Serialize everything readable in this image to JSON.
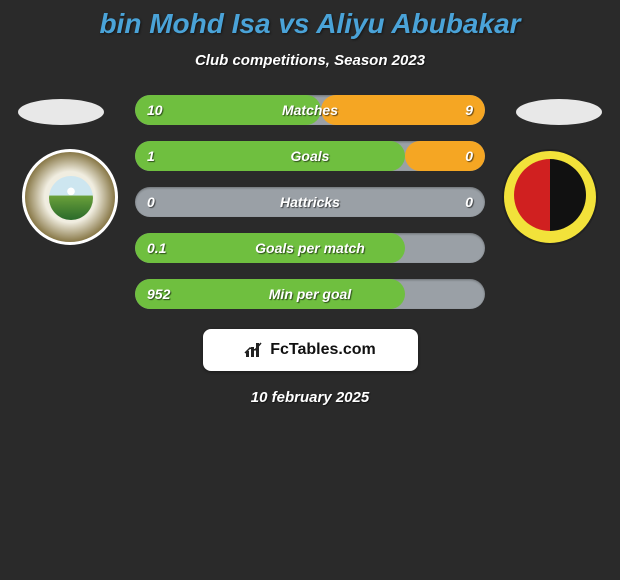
{
  "title_color": "#4aa3d8",
  "title": "bin Mohd Isa vs Aliyu Abubakar",
  "subtitle": "Club competitions, Season 2023",
  "date": "10 february 2025",
  "brand": "FcTables.com",
  "colors": {
    "bar_bg": "#9aa0a6",
    "bar_left": "#6fbf3f",
    "bar_right": "#f5a623"
  },
  "stats": [
    {
      "label": "Matches",
      "left_val": "10",
      "right_val": "9",
      "left_pct": 53,
      "right_pct": 47
    },
    {
      "label": "Goals",
      "left_val": "1",
      "right_val": "0",
      "left_pct": 77,
      "right_pct": 23
    },
    {
      "label": "Hattricks",
      "left_val": "0",
      "right_val": "0",
      "left_pct": 0,
      "right_pct": 0
    },
    {
      "label": "Goals per match",
      "left_val": "0.1",
      "right_val": "",
      "left_pct": 77,
      "right_pct": 0
    },
    {
      "label": "Min per goal",
      "left_val": "952",
      "right_val": "",
      "left_pct": 77,
      "right_pct": 0
    }
  ]
}
